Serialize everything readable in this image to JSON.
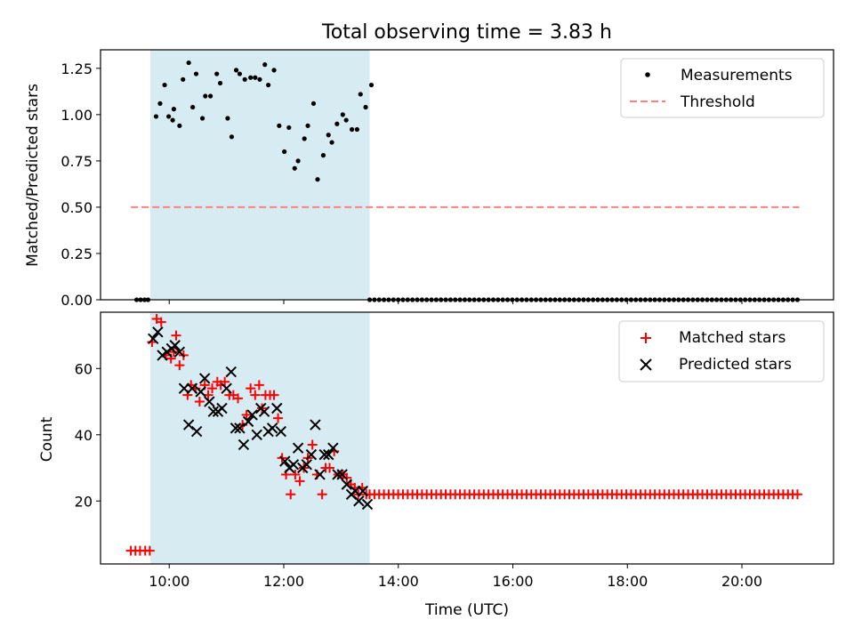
{
  "title": "Total observing time = 3.83 h",
  "colors": {
    "shade": "#add8e6",
    "measurement": "#000000",
    "threshold": "#ff7f7f",
    "matched": "#ff0000",
    "predicted": "#000000"
  },
  "chart_data": [
    {
      "type": "scatter",
      "ylabel": "Matched/Predicted stars",
      "xlim": [
        8.8,
        21.6
      ],
      "ylim": [
        0,
        1.35
      ],
      "yticks": [
        0,
        0.25,
        0.5,
        0.75,
        1.0,
        1.25
      ],
      "ytick_labels": [
        "0.00",
        "0.25",
        "0.50",
        "0.75",
        "1.00",
        "1.25"
      ],
      "shaded_interval": [
        9.67,
        13.5
      ],
      "legend_position": "upper right",
      "legend": [
        {
          "label": "Measurements",
          "marker": "dot"
        },
        {
          "label": "Threshold",
          "marker": "dashed"
        }
      ],
      "threshold": {
        "value": 0.5,
        "x_range": [
          9.33,
          21.0
        ]
      },
      "measurements_zero_x": [
        9.43,
        9.5,
        9.57,
        9.63
      ],
      "measurements_zero_range": {
        "start": 13.5,
        "end": 21.0,
        "step": 0.083
      },
      "measurements": [
        [
          9.77,
          0.99
        ],
        [
          9.84,
          1.06
        ],
        [
          9.92,
          1.16
        ],
        [
          9.99,
          0.99
        ],
        [
          10.06,
          0.97
        ],
        [
          10.08,
          1.03
        ],
        [
          10.18,
          0.94
        ],
        [
          10.24,
          1.19
        ],
        [
          10.34,
          1.28
        ],
        [
          10.41,
          1.04
        ],
        [
          10.47,
          1.22
        ],
        [
          10.58,
          0.98
        ],
        [
          10.63,
          1.1
        ],
        [
          10.72,
          1.1
        ],
        [
          10.83,
          1.22
        ],
        [
          10.89,
          1.17
        ],
        [
          11.02,
          0.98
        ],
        [
          11.09,
          0.88
        ],
        [
          11.17,
          1.24
        ],
        [
          11.23,
          1.22
        ],
        [
          11.32,
          1.19
        ],
        [
          11.42,
          1.2
        ],
        [
          11.5,
          1.2
        ],
        [
          11.58,
          1.19
        ],
        [
          11.67,
          1.27
        ],
        [
          11.73,
          1.16
        ],
        [
          11.83,
          1.24
        ],
        [
          11.92,
          0.94
        ],
        [
          12.01,
          0.8
        ],
        [
          12.09,
          0.93
        ],
        [
          12.19,
          0.71
        ],
        [
          12.25,
          0.75
        ],
        [
          12.36,
          0.87
        ],
        [
          12.42,
          0.94
        ],
        [
          12.52,
          1.06
        ],
        [
          12.59,
          0.65
        ],
        [
          12.69,
          0.78
        ],
        [
          12.78,
          0.89
        ],
        [
          12.84,
          0.85
        ],
        [
          12.93,
          0.95
        ],
        [
          13.03,
          1.0
        ],
        [
          13.09,
          0.97
        ],
        [
          13.19,
          0.92
        ],
        [
          13.28,
          0.92
        ],
        [
          13.34,
          1.11
        ],
        [
          13.43,
          1.04
        ],
        [
          13.53,
          1.16
        ]
      ]
    },
    {
      "type": "scatter",
      "xlabel": "Time (UTC)",
      "ylabel": "Count",
      "xlim": [
        8.8,
        21.6
      ],
      "ylim": [
        1,
        77
      ],
      "xticks": [
        10,
        12,
        14,
        16,
        18,
        20
      ],
      "xtick_labels": [
        "10:00",
        "12:00",
        "14:00",
        "16:00",
        "18:00",
        "20:00"
      ],
      "yticks": [
        20,
        40,
        60
      ],
      "ytick_labels": [
        "20",
        "40",
        "60"
      ],
      "shaded_interval": [
        9.67,
        13.5
      ],
      "legend_position": "upper right",
      "legend": [
        {
          "label": "Matched stars",
          "marker": "plus"
        },
        {
          "label": "Predicted stars",
          "marker": "x"
        }
      ],
      "constant_after": {
        "start": 13.5,
        "end": 21.0,
        "step": 0.083,
        "value": 22
      },
      "matched": [
        [
          9.33,
          5
        ],
        [
          9.41,
          5
        ],
        [
          9.49,
          5
        ],
        [
          9.58,
          5
        ],
        [
          9.66,
          5
        ],
        [
          9.7,
          68
        ],
        [
          9.78,
          75
        ],
        [
          9.86,
          74
        ],
        [
          9.94,
          64
        ],
        [
          10.03,
          63
        ],
        [
          10.08,
          65
        ],
        [
          10.12,
          70
        ],
        [
          10.18,
          61
        ],
        [
          10.25,
          64
        ],
        [
          10.32,
          52
        ],
        [
          10.38,
          55
        ],
        [
          10.46,
          54
        ],
        [
          10.53,
          50
        ],
        [
          10.62,
          55
        ],
        [
          10.68,
          52
        ],
        [
          10.75,
          54
        ],
        [
          10.84,
          56
        ],
        [
          10.9,
          55
        ],
        [
          10.97,
          56
        ],
        [
          11.05,
          52
        ],
        [
          11.12,
          52
        ],
        [
          11.2,
          51
        ],
        [
          11.28,
          43
        ],
        [
          11.35,
          46
        ],
        [
          11.42,
          54
        ],
        [
          11.5,
          52
        ],
        [
          11.57,
          55
        ],
        [
          11.62,
          48
        ],
        [
          11.68,
          52
        ],
        [
          11.76,
          52
        ],
        [
          11.83,
          52
        ],
        [
          11.9,
          45
        ],
        [
          11.97,
          33
        ],
        [
          12.04,
          28
        ],
        [
          12.12,
          22
        ],
        [
          12.2,
          28
        ],
        [
          12.28,
          26
        ],
        [
          12.35,
          30
        ],
        [
          12.42,
          33
        ],
        [
          12.5,
          37
        ],
        [
          12.58,
          28
        ],
        [
          12.67,
          22
        ],
        [
          12.73,
          30
        ],
        [
          12.8,
          30
        ],
        [
          12.88,
          35
        ],
        [
          12.95,
          28
        ],
        [
          13.03,
          28
        ],
        [
          13.1,
          27
        ],
        [
          13.17,
          25
        ],
        [
          13.24,
          24
        ],
        [
          13.3,
          22
        ],
        [
          13.37,
          24
        ],
        [
          13.44,
          22
        ]
      ],
      "predicted": [
        [
          9.72,
          69
        ],
        [
          9.8,
          71
        ],
        [
          9.88,
          64
        ],
        [
          9.96,
          65
        ],
        [
          10.04,
          66
        ],
        [
          10.1,
          67
        ],
        [
          10.18,
          65
        ],
        [
          10.26,
          54
        ],
        [
          10.34,
          43
        ],
        [
          10.4,
          54
        ],
        [
          10.48,
          41
        ],
        [
          10.55,
          53
        ],
        [
          10.62,
          57
        ],
        [
          10.7,
          50
        ],
        [
          10.77,
          47
        ],
        [
          10.85,
          47
        ],
        [
          10.92,
          48
        ],
        [
          11.0,
          54
        ],
        [
          11.08,
          59
        ],
        [
          11.16,
          42
        ],
        [
          11.23,
          42
        ],
        [
          11.3,
          37
        ],
        [
          11.38,
          44
        ],
        [
          11.45,
          46
        ],
        [
          11.53,
          40
        ],
        [
          11.6,
          48
        ],
        [
          11.66,
          47
        ],
        [
          11.73,
          41
        ],
        [
          11.8,
          42
        ],
        [
          11.88,
          48
        ],
        [
          11.95,
          41
        ],
        [
          12.02,
          32
        ],
        [
          12.1,
          30
        ],
        [
          12.17,
          31
        ],
        [
          12.25,
          36
        ],
        [
          12.33,
          30
        ],
        [
          12.4,
          31
        ],
        [
          12.48,
          34
        ],
        [
          12.55,
          43
        ],
        [
          12.63,
          28
        ],
        [
          12.71,
          34
        ],
        [
          12.78,
          34
        ],
        [
          12.86,
          36
        ],
        [
          12.94,
          28
        ],
        [
          13.02,
          28
        ],
        [
          13.1,
          25
        ],
        [
          13.18,
          22
        ],
        [
          13.25,
          23
        ],
        [
          13.31,
          20
        ],
        [
          13.38,
          23
        ],
        [
          13.46,
          19
        ]
      ]
    }
  ]
}
